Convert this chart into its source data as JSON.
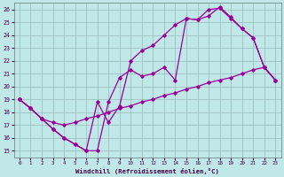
{
  "xlabel": "Windchill (Refroidissement éolien,°C)",
  "line_color": "#990099",
  "bg_color": "#c0e8e8",
  "grid_color": "#99bbbb",
  "xlim": [
    -0.5,
    23.5
  ],
  "ylim": [
    14.5,
    26.5
  ],
  "xticks": [
    0,
    1,
    2,
    3,
    4,
    5,
    6,
    7,
    8,
    9,
    10,
    11,
    12,
    13,
    14,
    15,
    16,
    17,
    18,
    19,
    20,
    21,
    22,
    23
  ],
  "yticks": [
    15,
    16,
    17,
    18,
    19,
    20,
    21,
    22,
    23,
    24,
    25,
    26
  ],
  "line1_x": [
    0,
    1,
    2,
    3,
    4,
    5,
    6,
    7,
    8,
    9,
    10,
    11,
    12,
    13,
    14,
    15,
    16,
    17,
    18,
    19,
    20,
    21,
    22,
    23
  ],
  "line1_y": [
    19.0,
    18.3,
    17.5,
    17.2,
    17.0,
    17.2,
    17.5,
    17.7,
    18.0,
    18.3,
    18.5,
    18.8,
    19.0,
    19.3,
    19.5,
    19.8,
    20.0,
    20.3,
    20.5,
    20.7,
    21.0,
    21.3,
    21.5,
    20.5
  ],
  "line2_x": [
    0,
    1,
    2,
    3,
    4,
    5,
    6,
    7,
    8,
    9,
    10,
    11,
    12,
    13,
    14,
    15,
    16,
    17,
    18,
    19,
    20,
    21,
    22,
    23
  ],
  "line2_y": [
    19.0,
    18.3,
    17.5,
    16.7,
    16.0,
    15.5,
    15.0,
    18.8,
    17.2,
    18.5,
    22.0,
    22.8,
    23.2,
    24.0,
    24.8,
    25.3,
    25.2,
    26.0,
    26.1,
    25.3,
    24.5,
    23.8,
    21.5,
    20.5
  ],
  "line3_x": [
    0,
    1,
    2,
    3,
    4,
    5,
    6,
    7,
    8,
    9,
    10,
    11,
    12,
    13,
    14,
    15,
    16,
    17,
    18,
    19,
    20,
    21,
    22,
    23
  ],
  "line3_y": [
    19.0,
    18.3,
    17.5,
    16.7,
    16.0,
    15.5,
    15.0,
    15.0,
    18.8,
    20.7,
    21.3,
    20.8,
    21.0,
    21.5,
    20.5,
    25.3,
    25.2,
    25.5,
    26.2,
    25.4,
    24.5,
    23.8,
    21.5,
    20.5
  ]
}
